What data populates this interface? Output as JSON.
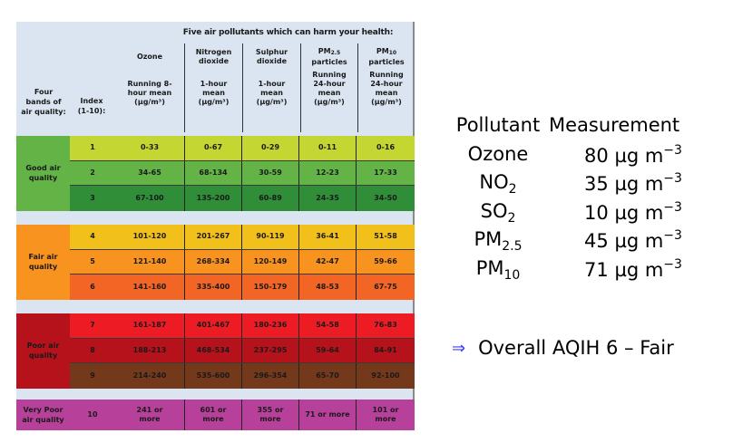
{
  "table": {
    "title": "Five air pollutants which can harm your health:",
    "header_band": [
      "Four",
      "bands of",
      "air quality:"
    ],
    "header_index": [
      "Index",
      "(1-10):"
    ],
    "pollutants": [
      {
        "name": [
          "Ozone"
        ],
        "desc": [
          "Running 8-",
          "hour mean",
          "(µg/m³)"
        ]
      },
      {
        "name": [
          "Nitrogen",
          "dioxide"
        ],
        "desc": [
          "1-hour",
          "mean",
          "(µg/m³)"
        ]
      },
      {
        "name": [
          "Sulphur",
          "dioxide"
        ],
        "desc": [
          "1-hour",
          "mean",
          "(µg/m³)"
        ]
      },
      {
        "name": [
          "PM2.5",
          "particles"
        ],
        "desc": [
          "Running",
          "24-hour",
          "mean",
          "(µg/m³)"
        ]
      },
      {
        "name": [
          "PM10",
          "particles"
        ],
        "desc": [
          "Running",
          "24-hour",
          "mean",
          "(µg/m³)"
        ]
      }
    ],
    "bands": [
      {
        "label": [
          "Good air",
          "quality"
        ],
        "color": "#63b346",
        "rows": [
          {
            "index": "1",
            "color": "#c4d632",
            "text": "#1a1a1a",
            "values": [
              "0-33",
              "0-67",
              "0-29",
              "0-11",
              "0-16"
            ]
          },
          {
            "index": "2",
            "color": "#63b346",
            "text": "#1a1a1a",
            "values": [
              "34-65",
              "68-134",
              "30-59",
              "12-23",
              "17-33"
            ]
          },
          {
            "index": "3",
            "color": "#2f8e37",
            "text": "#1a1a1a",
            "values": [
              "67-100",
              "135-200",
              "60-89",
              "24-35",
              "34-50"
            ]
          }
        ]
      },
      {
        "label": [
          "Fair air",
          "quality"
        ],
        "color": "#f7931e",
        "rows": [
          {
            "index": "4",
            "color": "#f2c01a",
            "text": "#1a1a1a",
            "values": [
              "101-120",
              "201-267",
              "90-119",
              "36-41",
              "51-58"
            ]
          },
          {
            "index": "5",
            "color": "#f7931e",
            "text": "#1a1a1a",
            "values": [
              "121-140",
              "268-334",
              "120-149",
              "42-47",
              "59-66"
            ]
          },
          {
            "index": "6",
            "color": "#f26524",
            "text": "#1a1a1a",
            "values": [
              "141-160",
              "335-400",
              "150-179",
              "48-53",
              "67-75"
            ]
          }
        ]
      },
      {
        "label": [
          "Poor air",
          "quality"
        ],
        "color": "#b5121b",
        "rows": [
          {
            "index": "7",
            "color": "#ed1c24",
            "text": "#1a1a1a",
            "values": [
              "161-187",
              "401-467",
              "180-236",
              "54-58",
              "76-83"
            ]
          },
          {
            "index": "8",
            "color": "#b5121b",
            "text": "#1a1a1a",
            "values": [
              "188-213",
              "468-534",
              "237-295",
              "59-64",
              "84-91"
            ]
          },
          {
            "index": "9",
            "color": "#74381a",
            "text": "#1a1a1a",
            "values": [
              "214-240",
              "535-600",
              "296-354",
              "65-70",
              "92-100"
            ]
          }
        ]
      },
      {
        "label": [
          "Very Poor",
          "air quality"
        ],
        "color": "#b7409b",
        "rows": [
          {
            "index": "10",
            "color": "#b7409b",
            "text": "#1a1a1a",
            "values": [
              "241 or more",
              "601 or more",
              "355 or more",
              "71 or more",
              "101 or more"
            ]
          }
        ]
      }
    ]
  },
  "measurements": {
    "header": {
      "pollutant": "Pollutant",
      "measurement": "Measurement"
    },
    "unit": "µg m",
    "unit_exp": "−3",
    "rows": [
      {
        "base": "Ozone",
        "sub": "",
        "value": "80"
      },
      {
        "base": "NO",
        "sub": "2",
        "value": "35"
      },
      {
        "base": "SO",
        "sub": "2",
        "value": "10"
      },
      {
        "base": "PM",
        "sub": "2.5",
        "value": "45"
      },
      {
        "base": "PM",
        "sub": "10",
        "value": "71"
      }
    ]
  },
  "conclusion": {
    "arrow": "⇒",
    "text": "Overall AQIH 6 – Fair"
  }
}
